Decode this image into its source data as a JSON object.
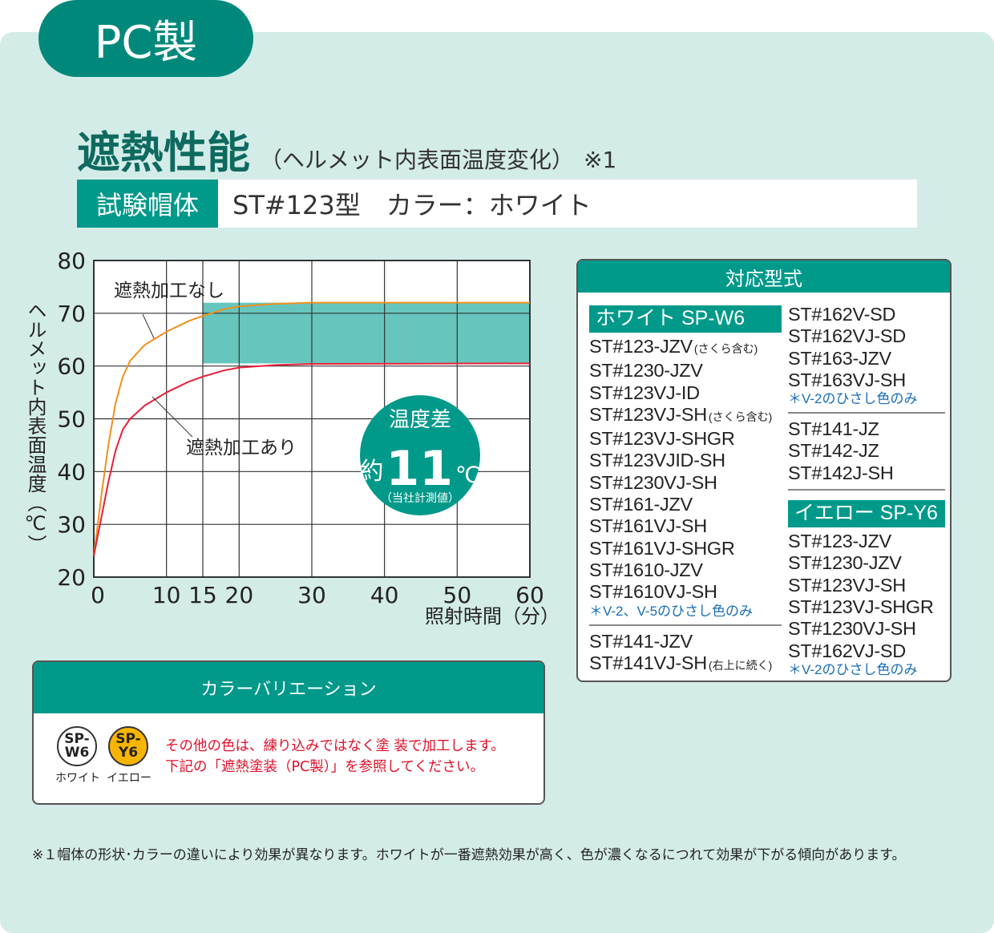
{
  "badge": "PC製",
  "title": {
    "main": "遮熱性能",
    "sub": "（ヘルメット内表面温度変化）",
    "note": "※1"
  },
  "spec": {
    "label": "試験帽体",
    "value": "ST#123型　カラー：ホワイト"
  },
  "chart_data": {
    "type": "line",
    "xlabel": "照射時間（分）",
    "ylabel": "ヘルメット内表面温度（℃）",
    "xlim": [
      0,
      60
    ],
    "ylim": [
      20,
      80
    ],
    "xticks": [
      0,
      10,
      15,
      20,
      30,
      40,
      50,
      60
    ],
    "yticks": [
      20,
      30,
      40,
      50,
      60,
      70,
      80
    ],
    "grid": true,
    "series": [
      {
        "name": "遮熱加工なし",
        "color": "#f0901e",
        "x": [
          0,
          1,
          2,
          3,
          4,
          5,
          7,
          10,
          13,
          15,
          18,
          20,
          25,
          30,
          60
        ],
        "y": [
          24,
          35,
          45,
          53,
          58,
          61,
          64,
          66.5,
          68.5,
          69.5,
          70.8,
          71.3,
          71.8,
          72,
          72
        ]
      },
      {
        "name": "遮熱加工あり",
        "color": "#e8203a",
        "x": [
          0,
          1,
          2,
          3,
          4,
          5,
          7,
          10,
          13,
          15,
          18,
          20,
          25,
          30,
          60
        ],
        "y": [
          24,
          31,
          38,
          44,
          48,
          50,
          52.5,
          55,
          57,
          58,
          59.2,
          59.7,
          60.2,
          60.4,
          60.5
        ]
      }
    ],
    "band": {
      "x": [
        15,
        60
      ],
      "y": [
        60.5,
        72
      ],
      "color": "#66c6bd"
    },
    "annotation": {
      "line1": "温度差",
      "prefix": "約",
      "value": "11",
      "unit": "℃",
      "note": "（当社計測値）"
    }
  },
  "models": {
    "header": "対応型式",
    "white": {
      "label": "ホワイト SP-W6",
      "items": [
        [
          "ST#123-JZV",
          "(さくら含む)"
        ],
        [
          "ST#1230-JZV",
          ""
        ],
        [
          "ST#123VJ-ID",
          ""
        ],
        [
          "ST#123VJ-SH",
          "(さくら含む)"
        ],
        [
          "ST#123VJ-SHGR",
          ""
        ],
        [
          "ST#123VJID-SH",
          ""
        ],
        [
          "ST#1230VJ-SH",
          ""
        ],
        [
          "ST#161-JZV",
          ""
        ],
        [
          "ST#161VJ-SH",
          ""
        ],
        [
          "ST#161VJ-SHGR",
          ""
        ],
        [
          "ST#1610-JZV",
          ""
        ],
        [
          "ST#1610VJ-SH",
          ""
        ]
      ],
      "note1": "＊V-2、V-5のひさし色のみ",
      "items2": [
        [
          "ST#141-JZV",
          ""
        ],
        [
          "ST#141VJ-SH",
          "(右上に続く)"
        ]
      ],
      "items3": [
        "ST#162V-SD",
        "ST#162VJ-SD",
        "ST#163-JZV",
        "ST#163VJ-SH"
      ],
      "note2": "＊V-2のひさし色のみ",
      "items4": [
        "ST#141-JZ",
        "ST#142-JZ",
        "ST#142J-SH"
      ]
    },
    "yellow": {
      "label": "イエロー SP-Y6",
      "items": [
        "ST#123-JZV",
        "ST#1230-JZV",
        "ST#123VJ-SH",
        "ST#123VJ-SHGR",
        "ST#1230VJ-SH",
        "ST#162VJ-SD"
      ],
      "note": "＊V-2のひさし色のみ"
    }
  },
  "colors": {
    "header": "カラーバリエーション",
    "chips": [
      {
        "code": "SP-W6",
        "name": "ホワイト",
        "color": "#ffffff"
      },
      {
        "code": "SP-Y6",
        "name": "イエロー",
        "color": "#f7b500"
      }
    ],
    "text1": "その他の色は、練り込みではなく塗 装で加工します。",
    "text2": "下記の「遮熱塗装（PC製）」を参照してください。"
  },
  "footnote": "※１帽体の形状･カラーの違いにより効果が異なります。ホワイトが一番遮熱効果が高く、色が濃くなるにつれて効果が下がる傾向があります。"
}
